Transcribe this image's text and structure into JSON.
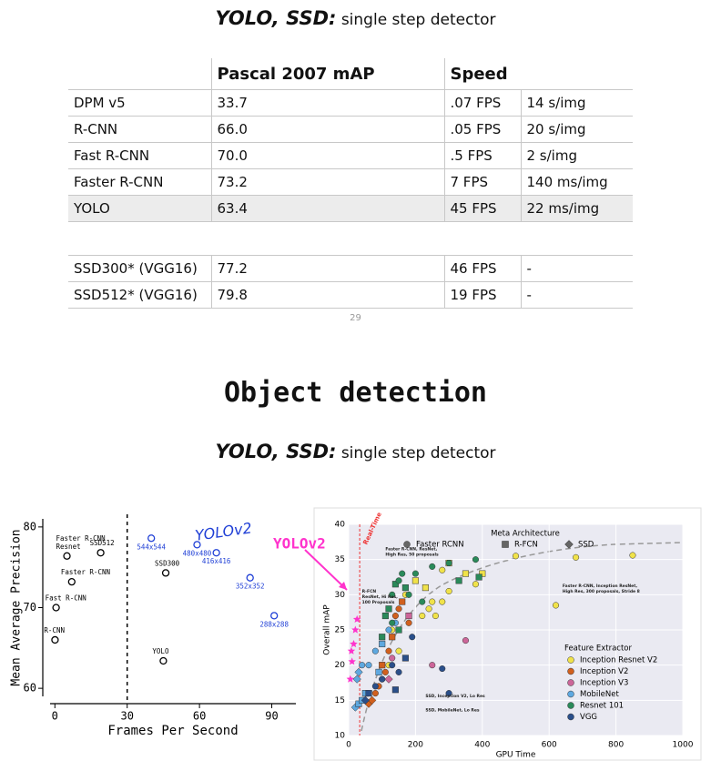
{
  "header": {
    "title_bold": "YOLO, SSD:",
    "title_rest": "single step detector"
  },
  "table": {
    "head": {
      "map": "Pascal 2007 mAP",
      "speed": "Speed"
    },
    "rows": [
      [
        "DPM v5",
        "33.7",
        ".07 FPS",
        "14 s/img"
      ],
      [
        "R-CNN",
        "66.0",
        ".05 FPS",
        "20 s/img"
      ],
      [
        "Fast R-CNN",
        "70.0",
        ".5 FPS",
        "2 s/img"
      ],
      [
        "Faster R-CNN",
        "73.2",
        "7 FPS",
        "140 ms/img"
      ],
      [
        "YOLO",
        "63.4",
        "45 FPS",
        "22 ms/img"
      ]
    ],
    "highlight_row": 4,
    "rows2": [
      [
        "SSD300* (VGG16)",
        "77.2",
        "46 FPS",
        "-"
      ],
      [
        "SSD512* (VGG16)",
        "79.8",
        "19 FPS",
        "-"
      ]
    ]
  },
  "page_number": "29",
  "section_title": "Object detection",
  "subheader": {
    "title_bold": "YOLO, SSD:",
    "title_rest": "single step detector"
  },
  "chart_data": [
    {
      "type": "scatter",
      "xlabel": "Frames Per Second",
      "ylabel": "Mean Average Precision",
      "xlim": [
        -2,
        100
      ],
      "ylim": [
        59,
        81
      ],
      "xticks": [
        0,
        30,
        60,
        90
      ],
      "yticks": [
        60,
        70,
        80
      ],
      "vline": 30,
      "series": [
        {
          "color": "#000000",
          "x": [
            5,
            19,
            7,
            0.5,
            0.05,
            46,
            45
          ],
          "values": [
            76.4,
            76.8,
            73.2,
            70,
            66,
            74.3,
            63.4
          ],
          "point_labels": [
            [
              "Faster R-CNN",
              "Resnet"
            ],
            [
              "SSD512"
            ],
            [
              "Faster R-CNN"
            ],
            [
              "Fast R-CNN"
            ],
            [
              "R-CNN"
            ],
            [
              "SSD300"
            ],
            [
              "YOLO"
            ]
          ]
        },
        {
          "name": "YOLOv2",
          "color": "#1f3fd6",
          "x": [
            40,
            59,
            67,
            81,
            91
          ],
          "values": [
            78.6,
            77.8,
            76.8,
            73.7,
            69
          ],
          "point_labels": [
            [
              "544x544"
            ],
            [
              "480x480"
            ],
            [
              "416x416"
            ],
            [
              "352x352"
            ],
            [
              "288x288"
            ]
          ]
        }
      ]
    },
    {
      "type": "scatter",
      "xlabel": "GPU Time",
      "ylabel": "Overall mAP",
      "xlim": [
        0,
        1000
      ],
      "ylim": [
        10,
        40
      ],
      "xticks": [
        0,
        200,
        400,
        600,
        800,
        1000
      ],
      "yticks": [
        10,
        15,
        20,
        25,
        30,
        35,
        40
      ],
      "meta_legend": {
        "title": "Meta Architecture",
        "items": [
          {
            "name": "Faster RCNN",
            "shape": "circle"
          },
          {
            "name": "R-FCN",
            "shape": "square"
          },
          {
            "name": "SSD",
            "shape": "diamond"
          }
        ]
      },
      "legend_title": "Feature Extractor",
      "realtime": {
        "label": "Real-Time",
        "x": 33
      },
      "highlight": {
        "label": "YOLOv2",
        "color": "#ff33cc",
        "x": [
          5,
          10,
          15,
          20,
          25,
          8
        ],
        "values": [
          18,
          20.5,
          23,
          25,
          26.5,
          22
        ]
      },
      "annotations": [
        {
          "lines": [
            "Faster R-CNN, ResNet,",
            "High Res, 50 proposals"
          ],
          "x": 110,
          "y": 36.5
        },
        {
          "lines": [
            "R-FCN",
            "ResNet, Hi Res,",
            "100 Proposals"
          ],
          "x": 40,
          "y": 30.5
        },
        {
          "lines": [
            "SSD, Inception V2, Lo Res"
          ],
          "x": 230,
          "y": 15.6
        },
        {
          "lines": [
            "SSD, MobileNet, Lo Res"
          ],
          "x": 230,
          "y": 13.6
        },
        {
          "lines": [
            "Faster R-CNN, Inception ResNet,",
            "High Res, 300 proposals, Stride 8"
          ],
          "x": 640,
          "y": 31.3
        }
      ],
      "series": [
        {
          "name": "Inception Resnet V2",
          "color": "#f0e24a",
          "x": [
            850,
            680,
            500,
            620,
            400,
            380,
            300,
            280,
            260,
            240,
            230,
            350,
            280,
            300,
            150,
            120,
            130,
            170,
            200,
            220,
            100,
            250
          ],
          "values": [
            35.6,
            35.3,
            35.5,
            28.5,
            33,
            31.5,
            30.5,
            29,
            27,
            28,
            31,
            33,
            33.5,
            34.5,
            22,
            20,
            25,
            30,
            32,
            27,
            18,
            29
          ],
          "shapes": [
            "circle",
            "circle",
            "circle",
            "circle",
            "square",
            "circle",
            "circle",
            "circle",
            "circle",
            "circle",
            "square",
            "square",
            "circle",
            "square",
            "circle",
            "circle",
            "circle",
            "circle",
            "square",
            "circle",
            "circle",
            "circle"
          ]
        },
        {
          "name": "Inception V2",
          "color": "#d1601e",
          "x": [
            80,
            90,
            100,
            110,
            120,
            130,
            140,
            150,
            160,
            60,
            70,
            180
          ],
          "values": [
            16,
            17,
            20,
            19,
            22,
            24,
            27,
            28,
            29,
            14.5,
            15,
            26
          ],
          "shapes": [
            "circle",
            "circle",
            "square",
            "circle",
            "circle",
            "square",
            "circle",
            "circle",
            "square",
            "diamond",
            "diamond",
            "circle"
          ]
        },
        {
          "name": "Inception V3",
          "color": "#cc6699",
          "x": [
            350,
            130,
            120,
            250,
            180
          ],
          "values": [
            23.5,
            21,
            18,
            20,
            27
          ],
          "shapes": [
            "circle",
            "circle",
            "diamond",
            "circle",
            "square"
          ]
        },
        {
          "name": "MobileNet",
          "color": "#5ea8e0",
          "x": [
            20,
            30,
            40,
            25,
            30,
            40,
            50,
            60,
            80,
            100,
            120,
            140,
            90
          ],
          "values": [
            14,
            14.5,
            15,
            18,
            19,
            20,
            16,
            20,
            22,
            23,
            25,
            26,
            19
          ],
          "shapes": [
            "diamond",
            "square",
            "square",
            "diamond",
            "diamond",
            "circle",
            "square",
            "circle",
            "circle",
            "square",
            "circle",
            "circle",
            "square"
          ]
        },
        {
          "name": "Resnet 101",
          "color": "#2a8a5a",
          "x": [
            100,
            110,
            130,
            140,
            150,
            160,
            170,
            180,
            200,
            250,
            300,
            380,
            330,
            390,
            220,
            120,
            130,
            150
          ],
          "values": [
            24,
            27,
            30,
            31.5,
            32,
            33,
            31,
            30,
            33,
            34,
            34.5,
            35,
            32,
            32.5,
            29,
            28,
            26,
            25
          ],
          "shapes": [
            "square",
            "square",
            "circle",
            "square",
            "circle",
            "circle",
            "square",
            "circle",
            "circle",
            "circle",
            "circle",
            "circle",
            "square",
            "square",
            "circle",
            "square",
            "circle",
            "square"
          ]
        },
        {
          "name": "VGG",
          "color": "#2a4f8a",
          "x": [
            50,
            60,
            80,
            100,
            130,
            140,
            300,
            280,
            150,
            190,
            170
          ],
          "values": [
            15,
            16,
            17,
            18,
            20,
            16.5,
            16,
            19.5,
            19,
            24,
            21
          ],
          "shapes": [
            "diamond",
            "square",
            "circle",
            "circle",
            "circle",
            "square",
            "circle",
            "circle",
            "circle",
            "circle",
            "square"
          ]
        }
      ]
    }
  ]
}
